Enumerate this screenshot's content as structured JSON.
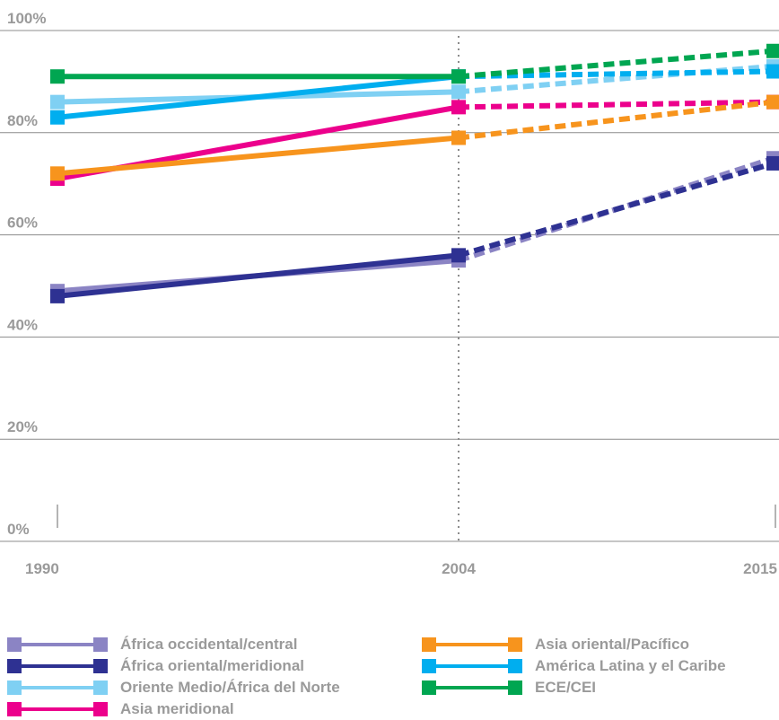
{
  "chart_data": {
    "type": "line",
    "x": [
      "1990",
      "2004",
      "2015"
    ],
    "ylim": [
      0,
      100
    ],
    "yticks": [
      "0%",
      "20%",
      "40%",
      "60%",
      "80%",
      "100%"
    ],
    "xticks": [
      "1990",
      "2004",
      "2015"
    ],
    "grid": true,
    "legend_position": "bottom",
    "note": "",
    "series": [
      {
        "name": "África occidental/central",
        "color": "#8b84c4",
        "values": [
          49,
          55,
          75
        ]
      },
      {
        "name": "África oriental/meridional",
        "color": "#2e3192",
        "values": [
          48,
          56,
          74
        ]
      },
      {
        "name": "Oriente Medio/África del Norte",
        "color": "#7fd0f3",
        "values": [
          86,
          88,
          93
        ]
      },
      {
        "name": "Asia meridional",
        "color": "#ec008c",
        "values": [
          71,
          85,
          86
        ]
      },
      {
        "name": "Asia oriental/Pacífico",
        "color": "#f7941d",
        "values": [
          72,
          79,
          86
        ]
      },
      {
        "name": "América Latina y el Caribe",
        "color": "#00aeef",
        "values": [
          83,
          91,
          92
        ]
      },
      {
        "name": "ECE/CEI",
        "color": "#00a651",
        "values": [
          91,
          91,
          96
        ]
      }
    ]
  }
}
